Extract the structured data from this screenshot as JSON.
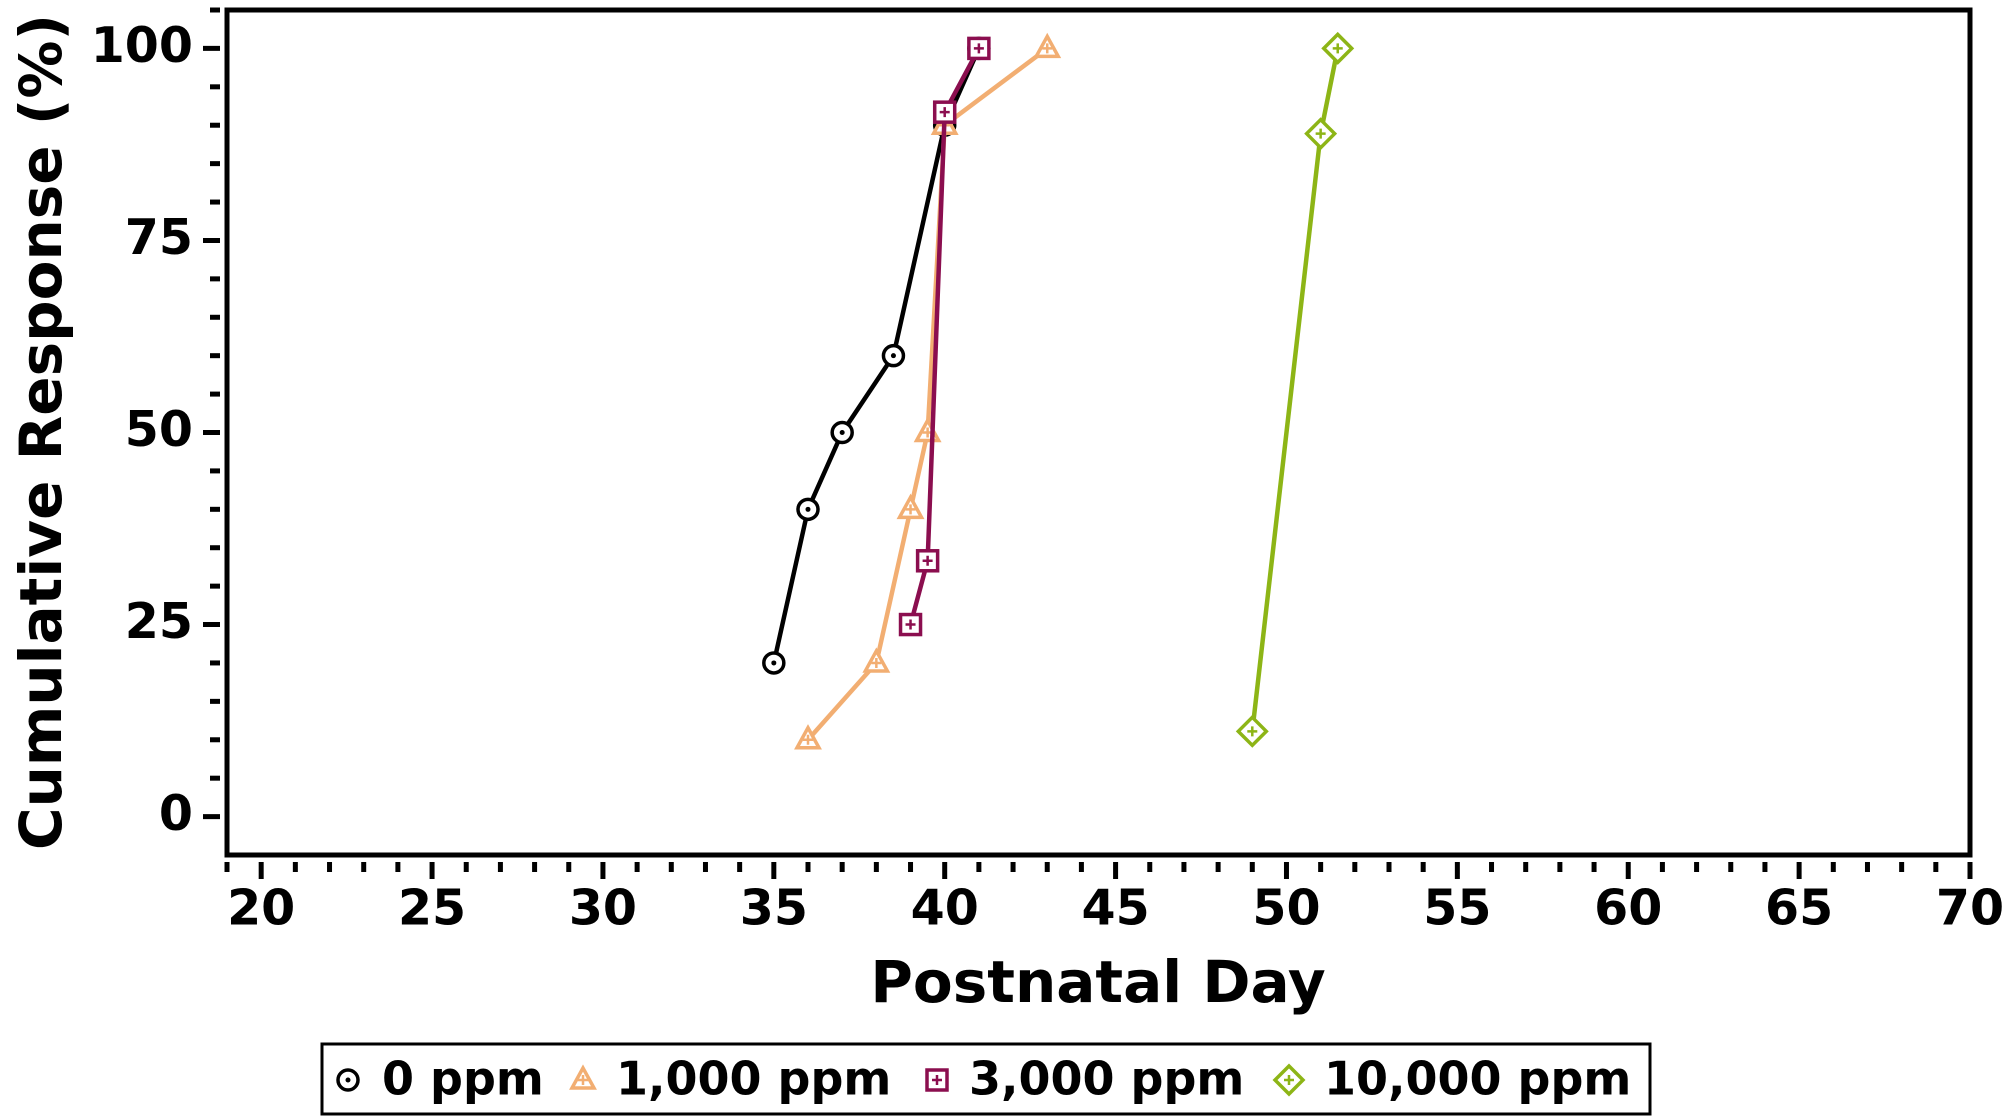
{
  "chart_data": {
    "type": "line",
    "xlabel": "Postnatal Day",
    "ylabel": "Cumulative Response (%)",
    "xlim": [
      19,
      70
    ],
    "ylim": [
      -5,
      105
    ],
    "xticks": [
      20,
      25,
      30,
      35,
      40,
      45,
      50,
      55,
      60,
      65,
      70
    ],
    "yticks": [
      0,
      25,
      50,
      75,
      100
    ],
    "legend_position": "bottom",
    "series": [
      {
        "name": "0 ppm",
        "color": "#000000",
        "marker": "circle",
        "x": [
          35,
          36,
          37,
          38.5,
          40,
          41
        ],
        "values": [
          20,
          40,
          50,
          60,
          90,
          100
        ]
      },
      {
        "name": "1,000 ppm",
        "color": "#f2ae72",
        "marker": "triangle",
        "x": [
          36,
          38,
          39,
          39.5,
          40,
          43
        ],
        "values": [
          10,
          20,
          40,
          50,
          90,
          100
        ]
      },
      {
        "name": "3,000 ppm",
        "color": "#8b0e4f",
        "marker": "square",
        "x": [
          39,
          39.5,
          40,
          41
        ],
        "values": [
          25,
          33.3,
          91.7,
          100
        ]
      },
      {
        "name": "10,000 ppm",
        "color": "#8db516",
        "marker": "diamond",
        "x": [
          49,
          51,
          51.5
        ],
        "values": [
          11.1,
          88.9,
          100
        ]
      }
    ]
  }
}
